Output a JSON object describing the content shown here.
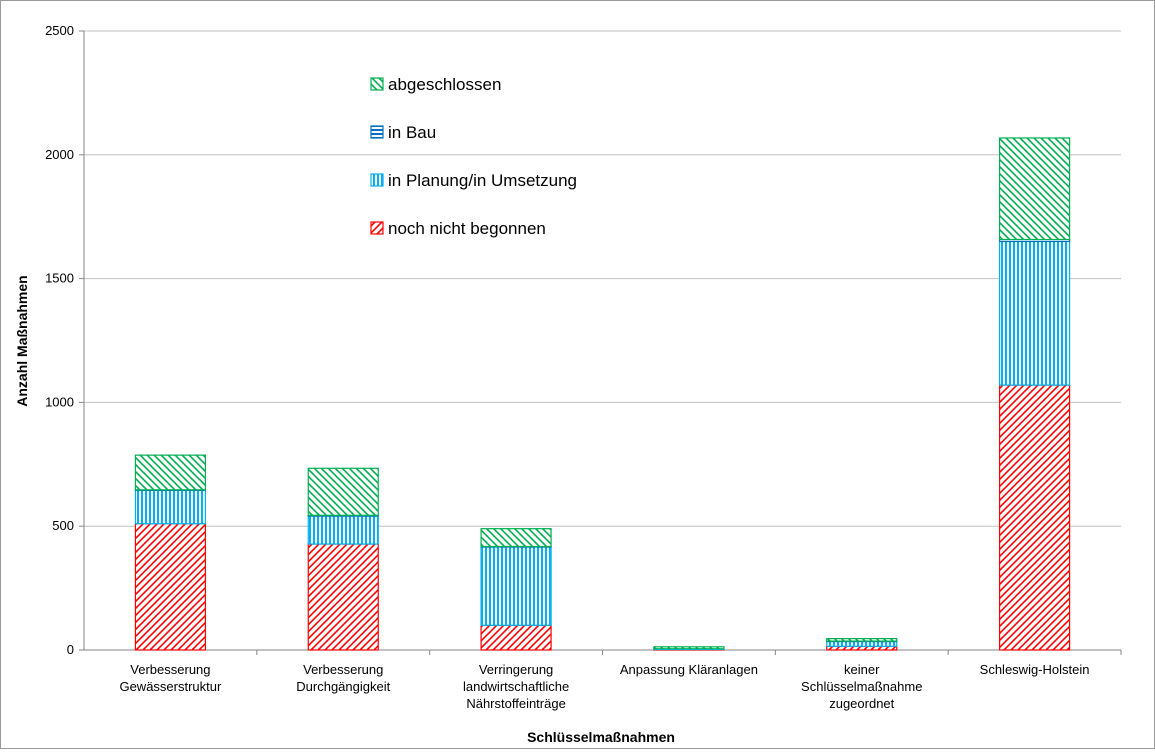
{
  "chart_data": {
    "type": "bar",
    "stacked": true,
    "title": "",
    "xlabel": "Schlüsselmaßnahmen",
    "ylabel": "Anzahl Maßnahmen",
    "ylim": [
      0,
      2500
    ],
    "yticks": [
      0,
      500,
      1000,
      1500,
      2000,
      2500
    ],
    "grid": true,
    "legend_position": "top-center",
    "categories": [
      [
        "Verbesserung",
        "Gewässerstruktur"
      ],
      [
        "Verbesserung",
        "Durchgängigkeit"
      ],
      [
        "Verringerung",
        "landwirtschaftliche",
        "Nährstoffeinträge"
      ],
      [
        "Anpassung Kläranlagen"
      ],
      [
        "keiner",
        "Schlüsselmaßnahme",
        "zugeordnet"
      ],
      [
        "Schleswig-Holstein"
      ]
    ],
    "series": [
      {
        "name": "noch nicht begonnen",
        "values": [
          510,
          428,
          100,
          2,
          15,
          1070
        ],
        "color": "#ff0000",
        "pattern": "diag-up"
      },
      {
        "name": "in Planung/in Umsetzung",
        "values": [
          135,
          113,
          316,
          3,
          20,
          580
        ],
        "color": "#00b0f0",
        "pattern": "vertical"
      },
      {
        "name": "in Bau",
        "values": [
          2,
          3,
          2,
          0,
          1,
          8
        ],
        "color": "#0070c0",
        "pattern": "horizontal"
      },
      {
        "name": "abgeschlossen",
        "values": [
          140,
          190,
          72,
          8,
          10,
          410
        ],
        "color": "#00b050",
        "pattern": "diag-down"
      }
    ]
  }
}
